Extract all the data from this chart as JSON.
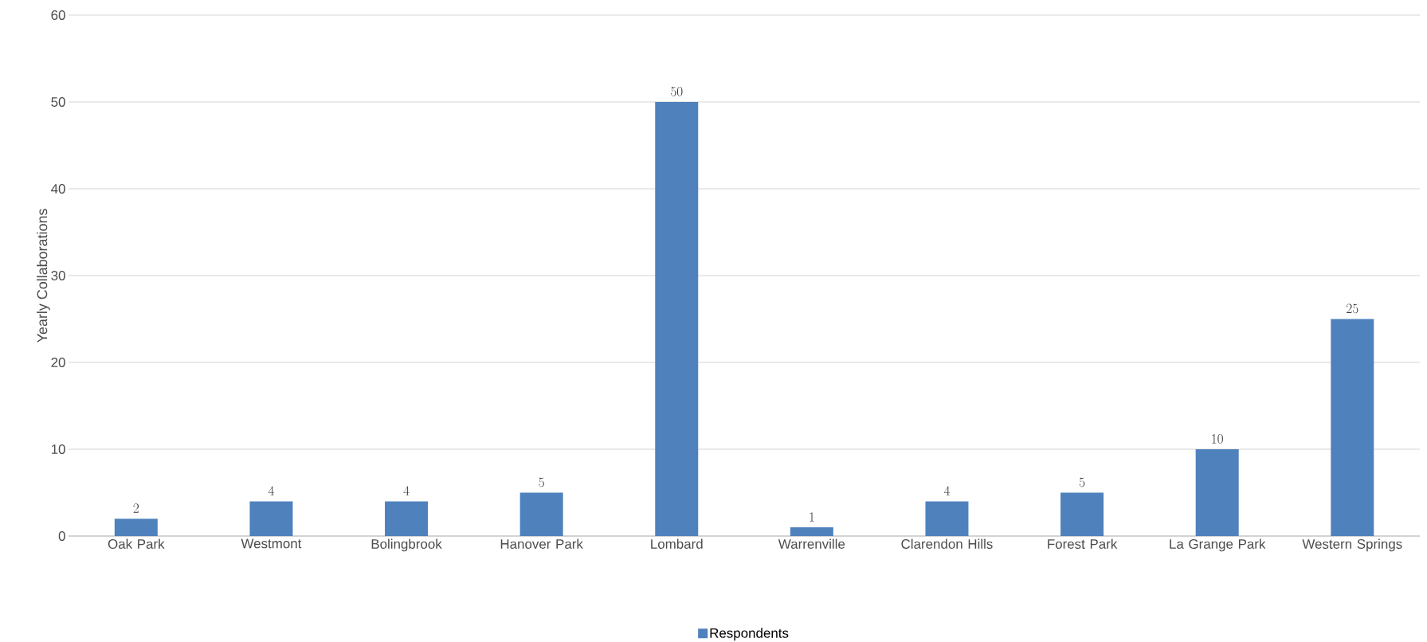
{
  "chart_data": {
    "type": "bar",
    "ylabel": "Yearly Collaborations",
    "categories": [
      "Oak Park",
      "Westmont",
      "Bolingbrook",
      "Hanover Park",
      "Lombard",
      "Warrenville",
      "Clarendon Hills",
      "Forest Park",
      "La Grange Park",
      "Western Springs"
    ],
    "series": [
      {
        "name": "Respondents",
        "color": "#4f81bd",
        "values": [
          2,
          4,
          4,
          5,
          50,
          1,
          4,
          5,
          10,
          25
        ]
      }
    ],
    "ylim": [
      0,
      60
    ],
    "yticks": [
      0,
      10,
      20,
      30,
      40,
      50,
      60
    ],
    "grid": "y",
    "legend": "bottom",
    "data_labels": true
  }
}
